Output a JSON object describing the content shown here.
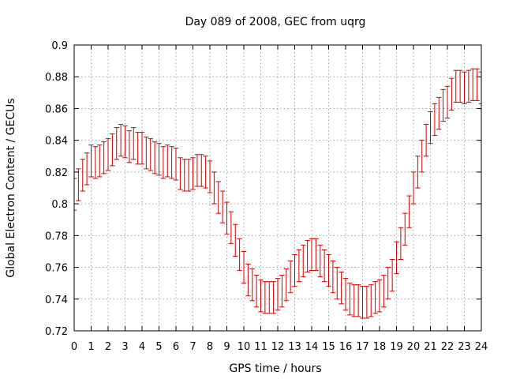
{
  "chart_data": {
    "type": "line",
    "title": "Day 089 of 2008, GEC from uqrg",
    "xlabel": "GPS time / hours",
    "ylabel": "Global Electron Content / GECUs",
    "xlim": [
      0,
      24
    ],
    "ylim": [
      0.72,
      0.9
    ],
    "grid": true,
    "series_color": "#cc0000",
    "x_ticks": [
      0,
      1,
      2,
      3,
      4,
      5,
      6,
      7,
      8,
      9,
      10,
      11,
      12,
      13,
      14,
      15,
      16,
      17,
      18,
      19,
      20,
      21,
      22,
      23,
      24
    ],
    "x_tick_labels": [
      "0",
      "1",
      "2",
      "3",
      "4",
      "5",
      "6",
      "7",
      "8",
      "9",
      "10",
      "11",
      "12",
      "13",
      "14",
      "15",
      "16",
      "17",
      "18",
      "19",
      "20",
      "21",
      "22",
      "23",
      "24"
    ],
    "y_ticks": [
      0.72,
      0.74,
      0.76,
      0.78,
      0.8,
      0.82,
      0.84,
      0.86,
      0.88,
      0.9
    ],
    "y_tick_labels": [
      "0.72",
      "0.74",
      "0.76",
      "0.78",
      "0.8",
      "0.82",
      "0.84",
      "0.86",
      "0.88",
      "0.9"
    ],
    "error": 0.01,
    "series": [
      {
        "name": "GEC",
        "x": [
          0,
          0.25,
          0.5,
          0.75,
          1,
          1.25,
          1.5,
          1.75,
          2,
          2.25,
          2.5,
          2.75,
          3,
          3.25,
          3.5,
          3.75,
          4,
          4.25,
          4.5,
          4.75,
          5,
          5.25,
          5.5,
          5.75,
          6,
          6.25,
          6.5,
          6.75,
          7,
          7.25,
          7.5,
          7.75,
          8,
          8.25,
          8.5,
          8.75,
          9,
          9.25,
          9.5,
          9.75,
          10,
          10.25,
          10.5,
          10.75,
          11,
          11.25,
          11.5,
          11.75,
          12,
          12.25,
          12.5,
          12.75,
          13,
          13.25,
          13.5,
          13.75,
          14,
          14.25,
          14.5,
          14.75,
          15,
          15.25,
          15.5,
          15.75,
          16,
          16.25,
          16.5,
          16.75,
          17,
          17.25,
          17.5,
          17.75,
          18,
          18.25,
          18.5,
          18.75,
          19,
          19.25,
          19.5,
          19.75,
          20,
          20.25,
          20.5,
          20.75,
          21,
          21.25,
          21.5,
          21.75,
          22,
          22.25,
          22.5,
          22.75,
          23,
          23.25,
          23.5,
          23.75,
          24
        ],
        "values": [
          0.806,
          0.812,
          0.818,
          0.822,
          0.827,
          0.826,
          0.827,
          0.829,
          0.831,
          0.834,
          0.838,
          0.84,
          0.839,
          0.836,
          0.838,
          0.835,
          0.835,
          0.832,
          0.831,
          0.829,
          0.828,
          0.826,
          0.827,
          0.826,
          0.825,
          0.819,
          0.818,
          0.818,
          0.819,
          0.821,
          0.821,
          0.82,
          0.817,
          0.81,
          0.804,
          0.798,
          0.791,
          0.785,
          0.777,
          0.768,
          0.76,
          0.752,
          0.749,
          0.745,
          0.742,
          0.741,
          0.741,
          0.741,
          0.743,
          0.745,
          0.749,
          0.754,
          0.758,
          0.761,
          0.764,
          0.767,
          0.768,
          0.768,
          0.764,
          0.761,
          0.758,
          0.754,
          0.75,
          0.747,
          0.743,
          0.74,
          0.739,
          0.739,
          0.738,
          0.738,
          0.739,
          0.741,
          0.742,
          0.745,
          0.75,
          0.755,
          0.766,
          0.775,
          0.784,
          0.795,
          0.81,
          0.82,
          0.83,
          0.84,
          0.848,
          0.853,
          0.857,
          0.862,
          0.864,
          0.869,
          0.874,
          0.874,
          0.873,
          0.874,
          0.875,
          0.875,
          0.873
        ]
      }
    ]
  }
}
